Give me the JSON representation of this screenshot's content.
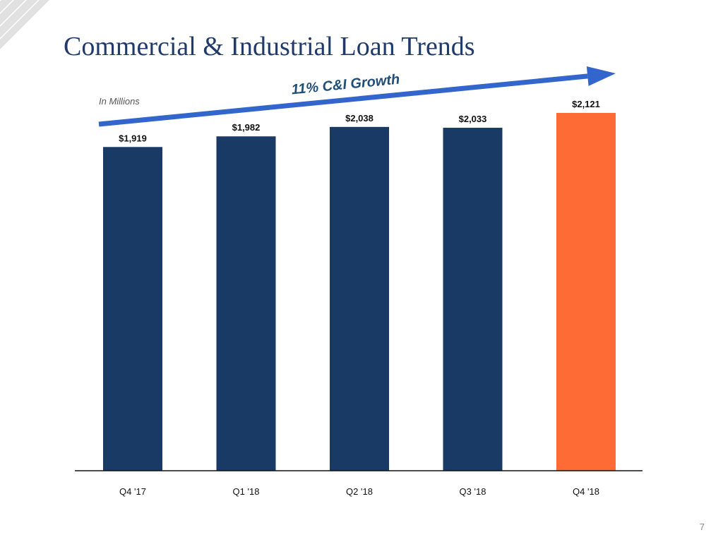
{
  "slide": {
    "title": "Commercial & Industrial Loan Trends",
    "units_note": "In Millions",
    "page_number": "7"
  },
  "colors": {
    "bar_default": "#1a3a66",
    "bar_highlight": "#ff6b35",
    "arrow": "#3366cc",
    "arrow_text": "#1f4e79",
    "title": "#1f3a6b"
  },
  "logo": {
    "icon": "stripes-logo-icon"
  },
  "chart_data": {
    "type": "bar",
    "categories": [
      "Q4 '17",
      "Q1 '18",
      "Q2 '18",
      "Q3 '18",
      "Q4 '18"
    ],
    "values": [
      1919,
      1982,
      2038,
      2033,
      2121
    ],
    "data_labels": [
      "$1,919",
      "$1,982",
      "$2,038",
      "$2,033",
      "$2,121"
    ],
    "highlight_index": 4,
    "ylim": [
      0,
      2250
    ],
    "grid": false,
    "annotation": {
      "text": "11% C&I Growth",
      "type": "arrow",
      "from_category": "Q4 '17",
      "to_category": "Q4 '18"
    }
  }
}
